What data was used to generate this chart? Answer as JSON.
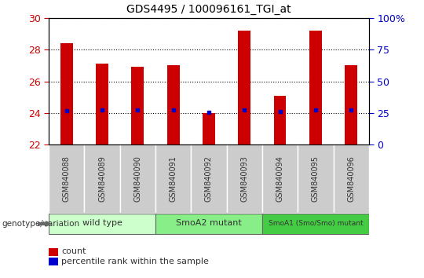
{
  "title": "GDS4495 / 100096161_TGI_at",
  "samples": [
    "GSM840088",
    "GSM840089",
    "GSM840090",
    "GSM840091",
    "GSM840092",
    "GSM840093",
    "GSM840094",
    "GSM840095",
    "GSM840096"
  ],
  "bar_tops": [
    28.4,
    27.1,
    26.9,
    27.0,
    24.0,
    29.2,
    25.1,
    29.2,
    27.0
  ],
  "bar_bottom": 22,
  "blue_markers": [
    24.15,
    24.2,
    24.2,
    24.2,
    24.05,
    24.2,
    24.1,
    24.2,
    24.2
  ],
  "ylim": [
    22,
    30
  ],
  "yticks": [
    22,
    24,
    26,
    28,
    30
  ],
  "right_ytick_pcts": [
    0,
    25,
    50,
    75,
    100
  ],
  "right_ytick_labels": [
    "0",
    "25",
    "50",
    "75",
    "100%"
  ],
  "bar_color": "#cc0000",
  "blue_color": "#0000cc",
  "bar_width": 0.35,
  "group_labels": [
    "wild type",
    "SmoA2 mutant",
    "SmoA1 (Smo/Smo) mutant"
  ],
  "group_ranges": [
    [
      0,
      2
    ],
    [
      3,
      5
    ],
    [
      6,
      8
    ]
  ],
  "group_colors": [
    "#ccffcc",
    "#88ee88",
    "#44cc44"
  ],
  "genotype_label": "genotype/variation",
  "legend_count_label": "count",
  "legend_pct_label": "percentile rank within the sample",
  "left_tick_color": "#cc0000",
  "right_tick_color": "#0000cc",
  "plot_bg": "#ffffff",
  "xtick_bg": "#cccccc"
}
